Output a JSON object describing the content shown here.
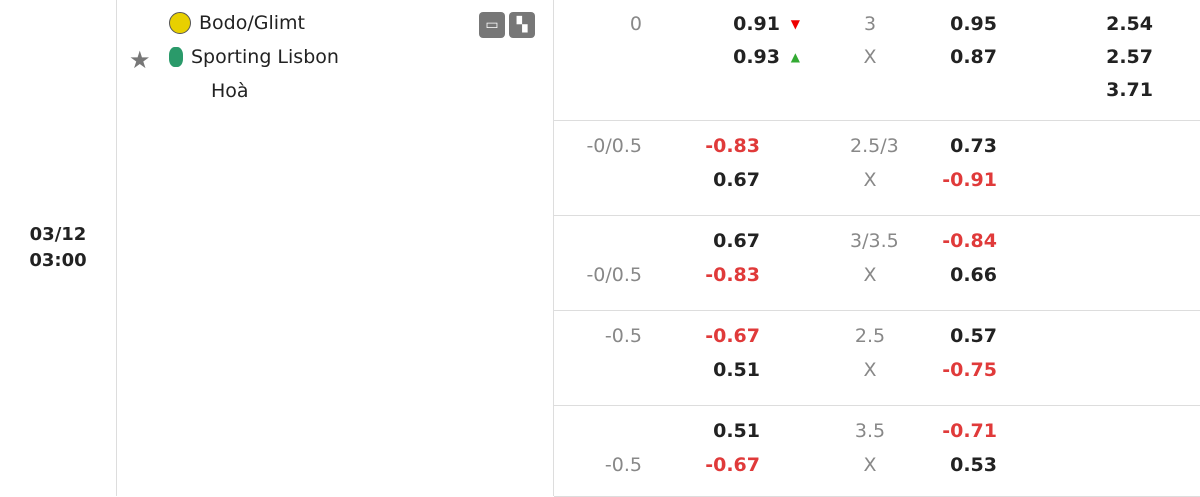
{
  "match": {
    "date": "03/12",
    "time": "03:00",
    "home": "Bodo/Glimt",
    "away": "Sporting Lisbon",
    "draw": "Hoà",
    "colors": {
      "home_logo": "#e8d000",
      "away_logo": "#2a9a6a",
      "negative": "#e03a3a",
      "up": "#33aa33",
      "down": "#ee0000"
    }
  },
  "icons": [
    "tv-icon",
    "lineup-icon",
    "star-icon"
  ],
  "rows": [
    {
      "hcap": [
        "0",
        ""
      ],
      "odds1": [
        "0.91",
        "0.93"
      ],
      "arrows": [
        "down",
        "up"
      ],
      "total": [
        "3",
        "X"
      ],
      "odds2": [
        "0.95",
        "0.87"
      ],
      "x12": [
        "2.54",
        "2.57",
        "3.71"
      ]
    },
    {
      "hcap": [
        "-0/0.5",
        ""
      ],
      "odds1": [
        "-0.83",
        "0.67"
      ],
      "total": [
        "2.5/3",
        "X"
      ],
      "odds2": [
        "0.73",
        "-0.91"
      ]
    },
    {
      "hcap": [
        "",
        "-0/0.5"
      ],
      "odds1": [
        "0.67",
        "-0.83"
      ],
      "total": [
        "3/3.5",
        "X"
      ],
      "odds2": [
        "-0.84",
        "0.66"
      ]
    },
    {
      "hcap": [
        "-0.5",
        ""
      ],
      "odds1": [
        "-0.67",
        "0.51"
      ],
      "total": [
        "2.5",
        "X"
      ],
      "odds2": [
        "0.57",
        "-0.75"
      ]
    },
    {
      "hcap": [
        "",
        "-0.5"
      ],
      "odds1": [
        "0.51",
        "-0.67"
      ],
      "total": [
        "3.5",
        "X"
      ],
      "odds2": [
        "-0.71",
        "0.53"
      ]
    }
  ]
}
